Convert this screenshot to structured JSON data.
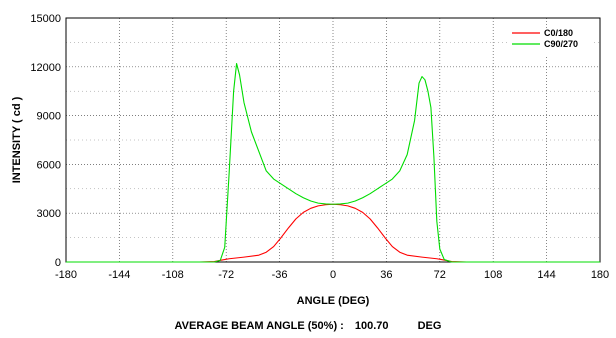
{
  "chart_data": {
    "type": "line",
    "title": "",
    "xlabel": "ANGLE (DEG)",
    "ylabel": "INTENSITY ( cd )",
    "xlim": [
      -180,
      180
    ],
    "ylim": [
      0,
      15000
    ],
    "x_ticks": [
      -180,
      -144,
      -108,
      -72,
      -36,
      0,
      36,
      72,
      108,
      144,
      180
    ],
    "y_ticks": [
      0,
      3000,
      6000,
      9000,
      12000,
      15000
    ],
    "grid": true,
    "legend_position": "top-right",
    "series": [
      {
        "name": "C0/180",
        "color": "#ff0000",
        "points": [
          [
            -180,
            0
          ],
          [
            -90,
            0
          ],
          [
            -80,
            30
          ],
          [
            -75,
            120
          ],
          [
            -70,
            200
          ],
          [
            -60,
            300
          ],
          [
            -50,
            420
          ],
          [
            -45,
            600
          ],
          [
            -40,
            950
          ],
          [
            -35,
            1500
          ],
          [
            -30,
            2100
          ],
          [
            -25,
            2650
          ],
          [
            -20,
            3050
          ],
          [
            -15,
            3300
          ],
          [
            -10,
            3450
          ],
          [
            -5,
            3520
          ],
          [
            0,
            3550
          ],
          [
            5,
            3520
          ],
          [
            10,
            3450
          ],
          [
            15,
            3300
          ],
          [
            20,
            3050
          ],
          [
            25,
            2650
          ],
          [
            30,
            2100
          ],
          [
            35,
            1500
          ],
          [
            40,
            950
          ],
          [
            45,
            600
          ],
          [
            50,
            420
          ],
          [
            60,
            300
          ],
          [
            70,
            200
          ],
          [
            75,
            120
          ],
          [
            80,
            30
          ],
          [
            90,
            0
          ],
          [
            180,
            0
          ]
        ]
      },
      {
        "name": "C90/270",
        "color": "#00dd00",
        "points": [
          [
            -180,
            0
          ],
          [
            -80,
            0
          ],
          [
            -76,
            100
          ],
          [
            -73,
            900
          ],
          [
            -70,
            5500
          ],
          [
            -67,
            10500
          ],
          [
            -65,
            12200
          ],
          [
            -63,
            11500
          ],
          [
            -60,
            9800
          ],
          [
            -55,
            8000
          ],
          [
            -50,
            6800
          ],
          [
            -45,
            5600
          ],
          [
            -40,
            5100
          ],
          [
            -35,
            4800
          ],
          [
            -30,
            4500
          ],
          [
            -25,
            4200
          ],
          [
            -20,
            3950
          ],
          [
            -15,
            3750
          ],
          [
            -10,
            3620
          ],
          [
            -5,
            3570
          ],
          [
            0,
            3550
          ],
          [
            5,
            3570
          ],
          [
            10,
            3620
          ],
          [
            15,
            3750
          ],
          [
            20,
            3950
          ],
          [
            25,
            4200
          ],
          [
            30,
            4500
          ],
          [
            35,
            4800
          ],
          [
            40,
            5100
          ],
          [
            45,
            5600
          ],
          [
            50,
            6600
          ],
          [
            55,
            8700
          ],
          [
            58,
            11000
          ],
          [
            60,
            11400
          ],
          [
            62,
            11200
          ],
          [
            64,
            10500
          ],
          [
            66,
            9500
          ],
          [
            68,
            6500
          ],
          [
            70,
            2500
          ],
          [
            72,
            800
          ],
          [
            75,
            150
          ],
          [
            80,
            0
          ],
          [
            180,
            0
          ]
        ]
      }
    ],
    "annotation": {
      "label": "AVERAGE BEAM ANGLE (50%) :",
      "value": "100.70",
      "unit": "DEG"
    }
  }
}
